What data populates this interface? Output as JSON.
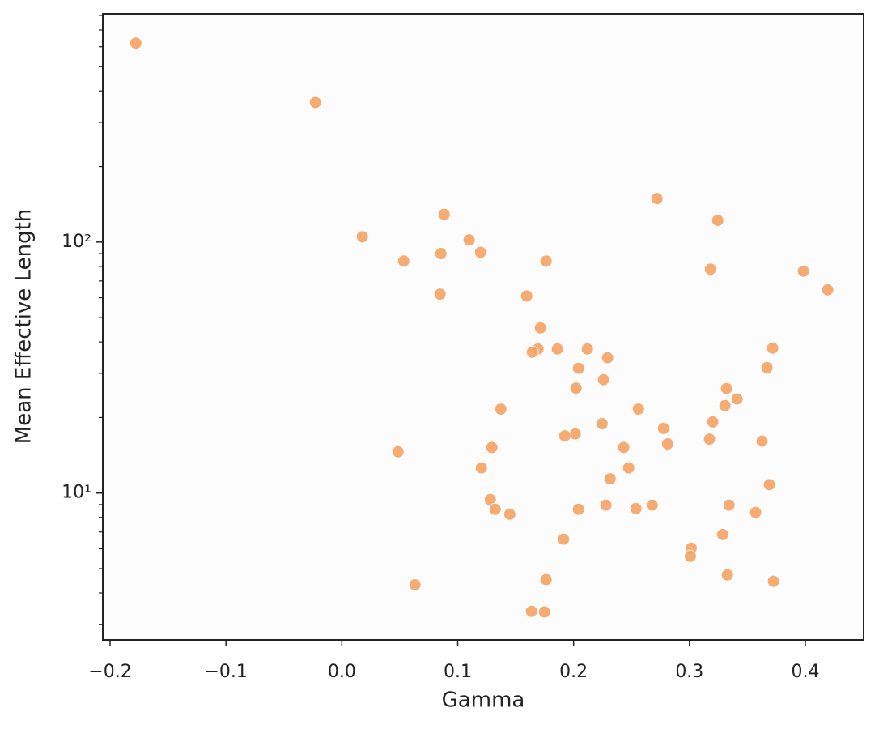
{
  "chart_data": {
    "type": "scatter",
    "log_y": true,
    "color": "#f4a262",
    "xlabel": "Gamma",
    "ylabel": "Mean Effective Length",
    "xlim": [
      -0.2063,
      0.4503
    ],
    "ylim": [
      2.6,
      812
    ],
    "xticks": [
      {
        "value": -0.2,
        "label": "−0.2"
      },
      {
        "value": -0.1,
        "label": "−0.1"
      },
      {
        "value": 0.0,
        "label": "0.0"
      },
      0.1,
      0.2,
      0.3,
      0.4
    ],
    "yticks": [
      {
        "value": 10,
        "label": "10¹"
      },
      {
        "value": 100,
        "label": "10²"
      }
    ],
    "yminorticks": [
      3,
      4,
      5,
      6,
      7,
      8,
      9,
      20,
      30,
      40,
      50,
      60,
      70,
      80,
      90,
      200,
      300,
      400,
      500,
      600,
      700,
      800
    ],
    "x": [
      -0.1778,
      -0.0228,
      0.0177,
      0.0534,
      0.0883,
      0.0855,
      0.0848,
      0.1099,
      0.1197,
      0.1763,
      0.1595,
      0.1714,
      0.1693,
      0.1644,
      0.186,
      0.2119,
      0.2293,
      0.2042,
      0.2021,
      0.2258,
      0.272,
      0.3244,
      0.3181,
      0.3984,
      0.4193,
      0.3718,
      0.3669,
      0.332,
      0.3411,
      0.3306,
      0.3201,
      0.3173,
      0.3627,
      0.369,
      0.3341,
      0.3571,
      0.3287,
      0.3015,
      0.3008,
      0.3327,
      0.3725,
      0.1372,
      0.2559,
      0.2776,
      0.2246,
      0.2811,
      0.2433,
      0.2014,
      0.1924,
      0.1295,
      0.0485,
      0.1204,
      0.2475,
      0.2315,
      0.1281,
      0.1323,
      0.1449,
      0.2279,
      0.2042,
      0.2538,
      0.2678,
      0.1913,
      0.0631,
      0.1763,
      0.1637,
      0.1749
    ],
    "y": [
      620,
      360,
      105,
      84,
      129,
      90,
      62,
      102,
      91,
      84,
      61,
      45.5,
      37.5,
      36.4,
      37.5,
      37.5,
      34.6,
      31.4,
      26.2,
      28.3,
      149,
      122,
      78,
      76.6,
      64.5,
      37.8,
      31.6,
      26.1,
      23.7,
      22.3,
      19.2,
      16.4,
      16.1,
      10.8,
      8.95,
      8.37,
      6.84,
      6.03,
      5.6,
      4.72,
      4.45,
      21.6,
      21.6,
      18.1,
      18.9,
      15.7,
      15.2,
      17.2,
      16.9,
      15.2,
      14.6,
      12.6,
      12.6,
      11.4,
      9.42,
      8.62,
      8.24,
      8.95,
      8.62,
      8.68,
      8.95,
      6.55,
      4.31,
      4.52,
      3.38,
      3.36
    ]
  }
}
